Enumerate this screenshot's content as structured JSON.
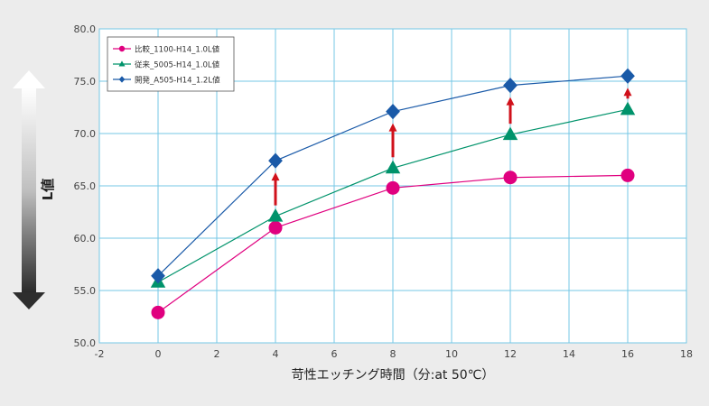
{
  "chart_data": {
    "type": "line",
    "title": "",
    "xlabel": "苛性エッチング時間（分:at 50℃）",
    "ylabel": "L値",
    "xlim": [
      -2,
      18
    ],
    "ylim": [
      50,
      80
    ],
    "xticks": [
      "-2",
      "0",
      "2",
      "4",
      "6",
      "8",
      "10",
      "12",
      "14",
      "16",
      "18"
    ],
    "yticks": [
      "50.0",
      "55.0",
      "60.0",
      "65.0",
      "70.0",
      "75.0",
      "80.0"
    ],
    "grid": true,
    "legend_position": "top-left",
    "series": [
      {
        "name": "比較_1100-H14_1.0L値",
        "color": "#e0007f",
        "marker": "circle",
        "x": [
          0,
          4,
          8,
          12,
          16
        ],
        "y": [
          52.9,
          61.0,
          64.8,
          65.8,
          66.0
        ]
      },
      {
        "name": "従来_5005-H14_1.0L値",
        "color": "#00936b",
        "marker": "triangle",
        "x": [
          0,
          4,
          8,
          12,
          16
        ],
        "y": [
          55.8,
          62.1,
          66.7,
          69.9,
          72.3
        ]
      },
      {
        "name": "開発_A505-H14_1.2L値",
        "color": "#1a5aa8",
        "marker": "diamond",
        "x": [
          0,
          4,
          8,
          12,
          16
        ],
        "y": [
          56.4,
          67.4,
          72.1,
          74.6,
          75.5
        ]
      }
    ],
    "arrows": [
      {
        "x": 4,
        "from": 62.1,
        "to": 67.4
      },
      {
        "x": 8,
        "from": 66.7,
        "to": 72.1
      },
      {
        "x": 12,
        "from": 69.9,
        "to": 74.6
      },
      {
        "x": 16,
        "from": 72.3,
        "to": 75.5
      }
    ],
    "colors": {
      "background": "#ececec",
      "plot_background": "#ffffff",
      "grid": "#74c7e6",
      "axis_text": "#444444",
      "arrow": "#d0111b"
    }
  }
}
